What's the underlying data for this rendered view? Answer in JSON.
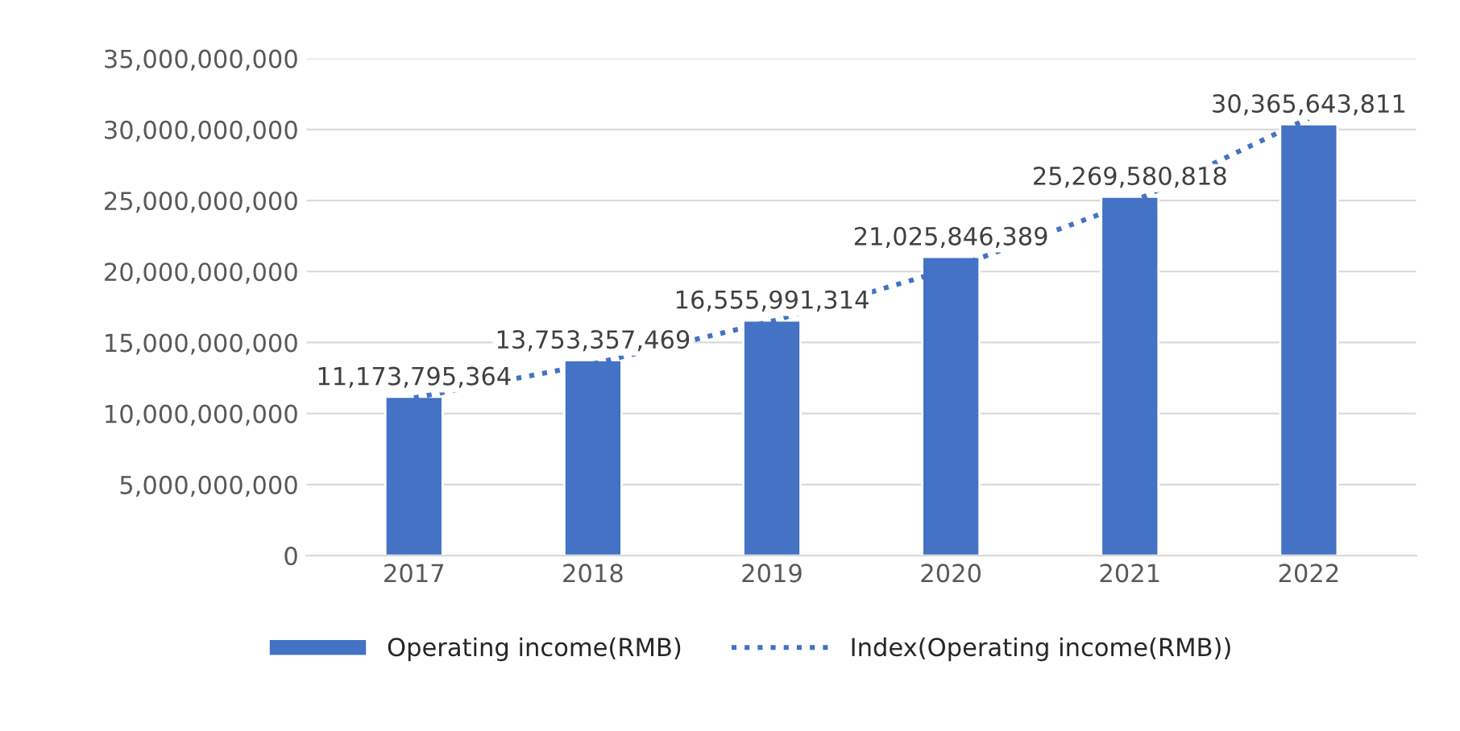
{
  "chart_data": {
    "type": "bar",
    "categories": [
      "2017",
      "2018",
      "2019",
      "2020",
      "2021",
      "2022"
    ],
    "series": [
      {
        "name": "Operating income(RMB)",
        "color": "#4472c4",
        "values": [
          11173795364,
          13753357469,
          16555991314,
          21025846389,
          25269580818,
          30365643811
        ],
        "value_labels": [
          "11,173,795,364",
          "13,753,357,469",
          "16,555,991,314",
          "21,025,846,389",
          "25,269,580,818",
          "30,365,643,811"
        ]
      },
      {
        "name": "Index(Operating income(RMB))",
        "type": "line",
        "color": "#4472c4",
        "line_style": "dotted",
        "values": [
          11100000000,
          13500000000,
          16500000000,
          20200000000,
          24800000000,
          30800000000
        ]
      }
    ],
    "ylim": [
      0,
      35000000000
    ],
    "yticks": [
      {
        "value": 0,
        "label": "0"
      },
      {
        "value": 5000000000,
        "label": "5,000,000,000"
      },
      {
        "value": 10000000000,
        "label": "10,000,000,000"
      },
      {
        "value": 15000000000,
        "label": "15,000,000,000"
      },
      {
        "value": 20000000000,
        "label": "20,000,000,000"
      },
      {
        "value": 25000000000,
        "label": "25,000,000,000"
      },
      {
        "value": 30000000000,
        "label": "30,000,000,000"
      },
      {
        "value": 35000000000,
        "label": "35,000,000,000"
      }
    ],
    "grid": "y",
    "legend": "bottom"
  }
}
